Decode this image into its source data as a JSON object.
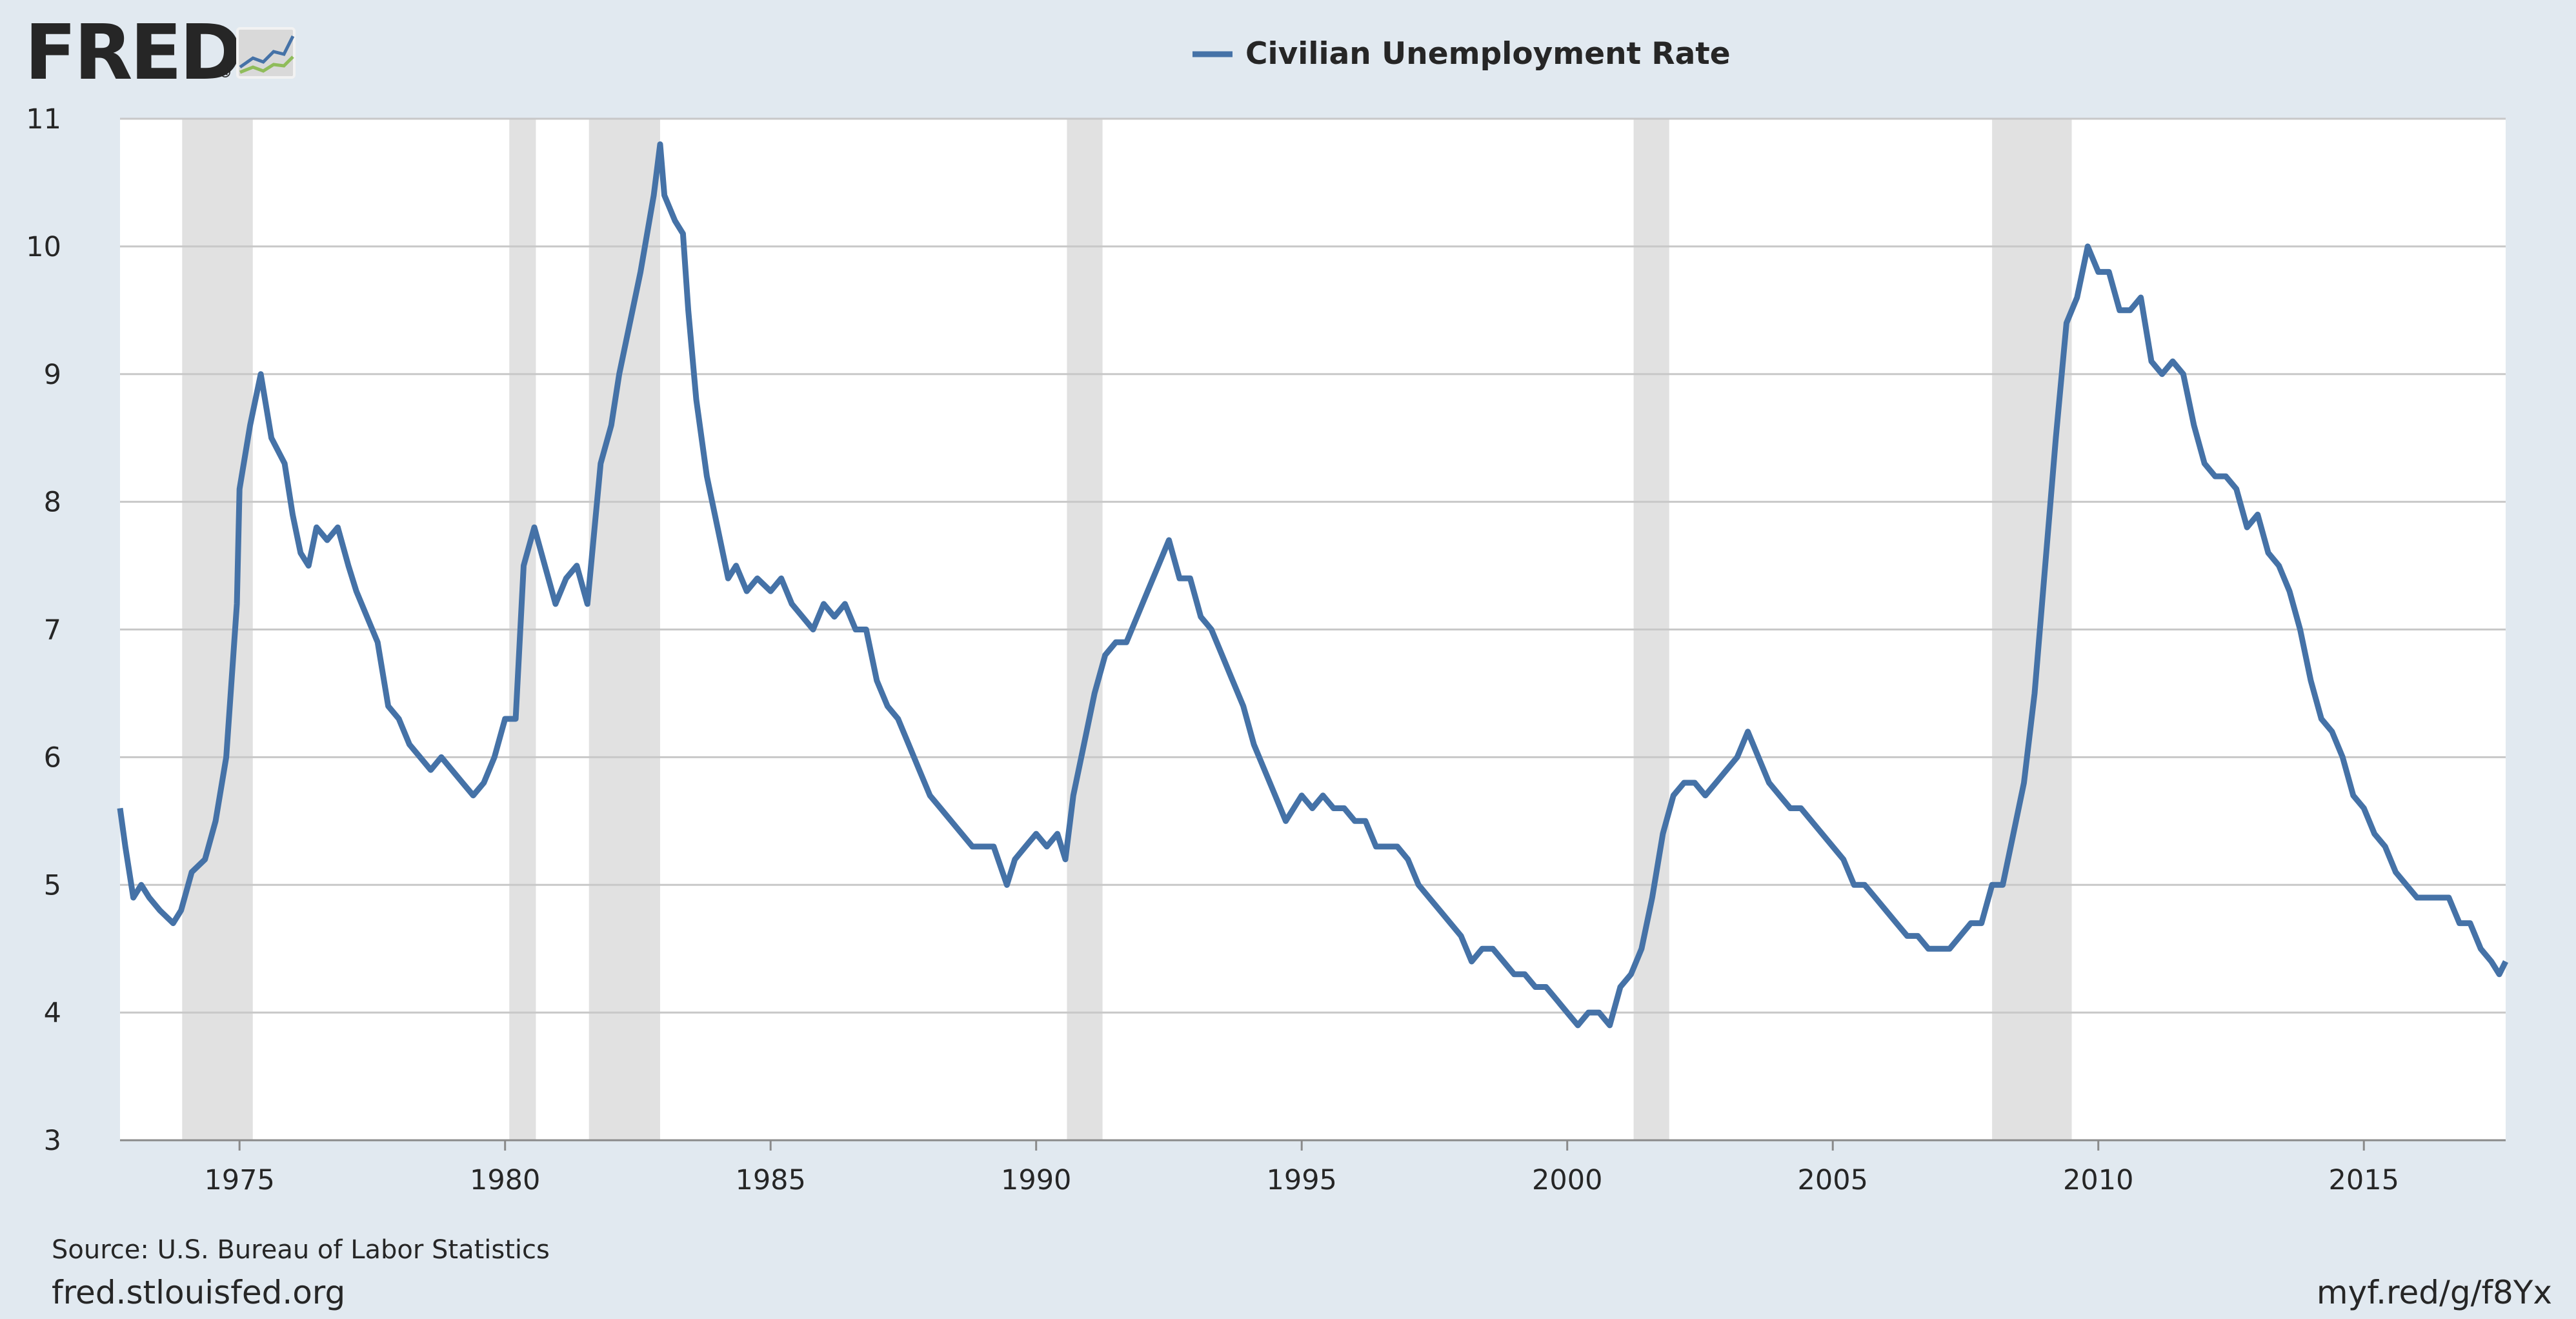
{
  "logo": {
    "text": "FRED",
    "mark": "®",
    "icon": "line-chart-icon"
  },
  "footer": {
    "source": "Source: U.S. Bureau of Labor Statistics",
    "site": "fred.stlouisfed.org",
    "short_link": "myf.red/g/f8Yx"
  },
  "colors": {
    "background": "#e1e9f0",
    "plot": "#ffffff",
    "series": "#4572a7",
    "recession": "#e1e1e1",
    "grid": "#c8c8c8",
    "text": "#262626"
  },
  "chart_data": {
    "type": "line",
    "title": "",
    "xlabel": "",
    "ylabel": "",
    "legend": {
      "placement": "top-center"
    },
    "grid": true,
    "xlim": [
      1972.75,
      2017.67
    ],
    "ylim": [
      3,
      11
    ],
    "x_ticks": [
      1975,
      1980,
      1985,
      1990,
      1995,
      2000,
      2005,
      2010,
      2015
    ],
    "x_tick_labels": [
      "1975",
      "1980",
      "1985",
      "1990",
      "1995",
      "2000",
      "2005",
      "2010",
      "2015"
    ],
    "y_ticks": [
      3,
      4,
      5,
      6,
      7,
      8,
      9,
      10,
      11
    ],
    "y_tick_labels": [
      "3",
      "4",
      "5",
      "6",
      "7",
      "8",
      "9",
      "10",
      "11"
    ],
    "recessions": [
      [
        1973.92,
        1975.25
      ],
      [
        1980.08,
        1980.58
      ],
      [
        1981.58,
        1982.92
      ],
      [
        1990.58,
        1991.25
      ],
      [
        2001.25,
        2001.92
      ],
      [
        2008.0,
        2009.5
      ]
    ],
    "series": [
      {
        "name": "Civilian Unemployment Rate",
        "points": [
          [
            1972.75,
            5.6
          ],
          [
            1972.85,
            5.3
          ],
          [
            1973.0,
            4.9
          ],
          [
            1973.15,
            5.0
          ],
          [
            1973.3,
            4.9
          ],
          [
            1973.5,
            4.8
          ],
          [
            1973.75,
            4.7
          ],
          [
            1973.9,
            4.8
          ],
          [
            1974.1,
            5.1
          ],
          [
            1974.35,
            5.2
          ],
          [
            1974.55,
            5.5
          ],
          [
            1974.75,
            6.0
          ],
          [
            1974.95,
            7.2
          ],
          [
            1975.0,
            8.1
          ],
          [
            1975.2,
            8.6
          ],
          [
            1975.4,
            9.0
          ],
          [
            1975.6,
            8.5
          ],
          [
            1975.85,
            8.3
          ],
          [
            1976.0,
            7.9
          ],
          [
            1976.15,
            7.6
          ],
          [
            1976.3,
            7.5
          ],
          [
            1976.45,
            7.8
          ],
          [
            1976.65,
            7.7
          ],
          [
            1976.85,
            7.8
          ],
          [
            1977.05,
            7.5
          ],
          [
            1977.2,
            7.3
          ],
          [
            1977.4,
            7.1
          ],
          [
            1977.6,
            6.9
          ],
          [
            1977.8,
            6.4
          ],
          [
            1978.0,
            6.3
          ],
          [
            1978.2,
            6.1
          ],
          [
            1978.4,
            6.0
          ],
          [
            1978.6,
            5.9
          ],
          [
            1978.8,
            6.0
          ],
          [
            1979.0,
            5.9
          ],
          [
            1979.2,
            5.8
          ],
          [
            1979.4,
            5.7
          ],
          [
            1979.6,
            5.8
          ],
          [
            1979.8,
            6.0
          ],
          [
            1980.0,
            6.3
          ],
          [
            1980.2,
            6.3
          ],
          [
            1980.35,
            7.5
          ],
          [
            1980.55,
            7.8
          ],
          [
            1980.75,
            7.5
          ],
          [
            1980.95,
            7.2
          ],
          [
            1981.15,
            7.4
          ],
          [
            1981.35,
            7.5
          ],
          [
            1981.55,
            7.2
          ],
          [
            1981.8,
            8.3
          ],
          [
            1982.0,
            8.6
          ],
          [
            1982.15,
            9.0
          ],
          [
            1982.35,
            9.4
          ],
          [
            1982.55,
            9.8
          ],
          [
            1982.8,
            10.4
          ],
          [
            1982.92,
            10.8
          ],
          [
            1983.0,
            10.4
          ],
          [
            1983.2,
            10.2
          ],
          [
            1983.35,
            10.1
          ],
          [
            1983.45,
            9.5
          ],
          [
            1983.6,
            8.8
          ],
          [
            1983.8,
            8.2
          ],
          [
            1984.0,
            7.8
          ],
          [
            1984.2,
            7.4
          ],
          [
            1984.35,
            7.5
          ],
          [
            1984.55,
            7.3
          ],
          [
            1984.75,
            7.4
          ],
          [
            1985.0,
            7.3
          ],
          [
            1985.2,
            7.4
          ],
          [
            1985.4,
            7.2
          ],
          [
            1985.6,
            7.1
          ],
          [
            1985.8,
            7.0
          ],
          [
            1986.0,
            7.2
          ],
          [
            1986.2,
            7.1
          ],
          [
            1986.4,
            7.2
          ],
          [
            1986.6,
            7.0
          ],
          [
            1986.8,
            7.0
          ],
          [
            1987.0,
            6.6
          ],
          [
            1987.2,
            6.4
          ],
          [
            1987.4,
            6.3
          ],
          [
            1987.6,
            6.1
          ],
          [
            1987.8,
            5.9
          ],
          [
            1988.0,
            5.7
          ],
          [
            1988.2,
            5.6
          ],
          [
            1988.4,
            5.5
          ],
          [
            1988.6,
            5.4
          ],
          [
            1988.8,
            5.3
          ],
          [
            1989.0,
            5.3
          ],
          [
            1989.2,
            5.3
          ],
          [
            1989.45,
            5.0
          ],
          [
            1989.6,
            5.2
          ],
          [
            1989.8,
            5.3
          ],
          [
            1990.0,
            5.4
          ],
          [
            1990.2,
            5.3
          ],
          [
            1990.4,
            5.4
          ],
          [
            1990.55,
            5.2
          ],
          [
            1990.7,
            5.7
          ],
          [
            1990.9,
            6.1
          ],
          [
            1991.1,
            6.5
          ],
          [
            1991.3,
            6.8
          ],
          [
            1991.5,
            6.9
          ],
          [
            1991.7,
            6.9
          ],
          [
            1991.9,
            7.1
          ],
          [
            1992.1,
            7.3
          ],
          [
            1992.3,
            7.5
          ],
          [
            1992.5,
            7.7
          ],
          [
            1992.7,
            7.4
          ],
          [
            1992.9,
            7.4
          ],
          [
            1993.1,
            7.1
          ],
          [
            1993.3,
            7.0
          ],
          [
            1993.5,
            6.8
          ],
          [
            1993.7,
            6.6
          ],
          [
            1993.9,
            6.4
          ],
          [
            1994.1,
            6.1
          ],
          [
            1994.3,
            5.9
          ],
          [
            1994.5,
            5.7
          ],
          [
            1994.7,
            5.5
          ],
          [
            1994.85,
            5.6
          ],
          [
            1995.0,
            5.7
          ],
          [
            1995.2,
            5.6
          ],
          [
            1995.4,
            5.7
          ],
          [
            1995.6,
            5.6
          ],
          [
            1995.8,
            5.6
          ],
          [
            1996.0,
            5.5
          ],
          [
            1996.2,
            5.5
          ],
          [
            1996.4,
            5.3
          ],
          [
            1996.6,
            5.3
          ],
          [
            1996.8,
            5.3
          ],
          [
            1997.0,
            5.2
          ],
          [
            1997.2,
            5.0
          ],
          [
            1997.4,
            4.9
          ],
          [
            1997.6,
            4.8
          ],
          [
            1997.8,
            4.7
          ],
          [
            1998.0,
            4.6
          ],
          [
            1998.2,
            4.4
          ],
          [
            1998.4,
            4.5
          ],
          [
            1998.6,
            4.5
          ],
          [
            1998.8,
            4.4
          ],
          [
            1999.0,
            4.3
          ],
          [
            1999.2,
            4.3
          ],
          [
            1999.4,
            4.2
          ],
          [
            1999.6,
            4.2
          ],
          [
            1999.8,
            4.1
          ],
          [
            2000.0,
            4.0
          ],
          [
            2000.2,
            3.9
          ],
          [
            2000.4,
            4.0
          ],
          [
            2000.6,
            4.0
          ],
          [
            2000.8,
            3.9
          ],
          [
            2001.0,
            4.2
          ],
          [
            2001.2,
            4.3
          ],
          [
            2001.4,
            4.5
          ],
          [
            2001.6,
            4.9
          ],
          [
            2001.8,
            5.4
          ],
          [
            2002.0,
            5.7
          ],
          [
            2002.2,
            5.8
          ],
          [
            2002.4,
            5.8
          ],
          [
            2002.6,
            5.7
          ],
          [
            2002.8,
            5.8
          ],
          [
            2003.0,
            5.9
          ],
          [
            2003.2,
            6.0
          ],
          [
            2003.4,
            6.2
          ],
          [
            2003.6,
            6.0
          ],
          [
            2003.8,
            5.8
          ],
          [
            2004.0,
            5.7
          ],
          [
            2004.2,
            5.6
          ],
          [
            2004.4,
            5.6
          ],
          [
            2004.6,
            5.5
          ],
          [
            2004.8,
            5.4
          ],
          [
            2005.0,
            5.3
          ],
          [
            2005.2,
            5.2
          ],
          [
            2005.4,
            5.0
          ],
          [
            2005.6,
            5.0
          ],
          [
            2005.8,
            4.9
          ],
          [
            2006.0,
            4.8
          ],
          [
            2006.2,
            4.7
          ],
          [
            2006.4,
            4.6
          ],
          [
            2006.6,
            4.6
          ],
          [
            2006.8,
            4.5
          ],
          [
            2007.0,
            4.5
          ],
          [
            2007.2,
            4.5
          ],
          [
            2007.4,
            4.6
          ],
          [
            2007.6,
            4.7
          ],
          [
            2007.8,
            4.7
          ],
          [
            2008.0,
            5.0
          ],
          [
            2008.2,
            5.0
          ],
          [
            2008.4,
            5.4
          ],
          [
            2008.6,
            5.8
          ],
          [
            2008.8,
            6.5
          ],
          [
            2009.0,
            7.5
          ],
          [
            2009.2,
            8.5
          ],
          [
            2009.4,
            9.4
          ],
          [
            2009.6,
            9.6
          ],
          [
            2009.8,
            10.0
          ],
          [
            2010.0,
            9.8
          ],
          [
            2010.2,
            9.8
          ],
          [
            2010.4,
            9.5
          ],
          [
            2010.6,
            9.5
          ],
          [
            2010.8,
            9.6
          ],
          [
            2011.0,
            9.1
          ],
          [
            2011.2,
            9.0
          ],
          [
            2011.4,
            9.1
          ],
          [
            2011.6,
            9.0
          ],
          [
            2011.8,
            8.6
          ],
          [
            2012.0,
            8.3
          ],
          [
            2012.2,
            8.2
          ],
          [
            2012.4,
            8.2
          ],
          [
            2012.6,
            8.1
          ],
          [
            2012.8,
            7.8
          ],
          [
            2013.0,
            7.9
          ],
          [
            2013.2,
            7.6
          ],
          [
            2013.4,
            7.5
          ],
          [
            2013.6,
            7.3
          ],
          [
            2013.8,
            7.0
          ],
          [
            2014.0,
            6.6
          ],
          [
            2014.2,
            6.3
          ],
          [
            2014.4,
            6.2
          ],
          [
            2014.6,
            6.0
          ],
          [
            2014.8,
            5.7
          ],
          [
            2015.0,
            5.6
          ],
          [
            2015.2,
            5.4
          ],
          [
            2015.4,
            5.3
          ],
          [
            2015.6,
            5.1
          ],
          [
            2015.8,
            5.0
          ],
          [
            2016.0,
            4.9
          ],
          [
            2016.2,
            4.9
          ],
          [
            2016.4,
            4.9
          ],
          [
            2016.6,
            4.9
          ],
          [
            2016.8,
            4.7
          ],
          [
            2017.0,
            4.7
          ],
          [
            2017.2,
            4.5
          ],
          [
            2017.4,
            4.4
          ],
          [
            2017.55,
            4.3
          ],
          [
            2017.67,
            4.4
          ]
        ]
      }
    ]
  }
}
